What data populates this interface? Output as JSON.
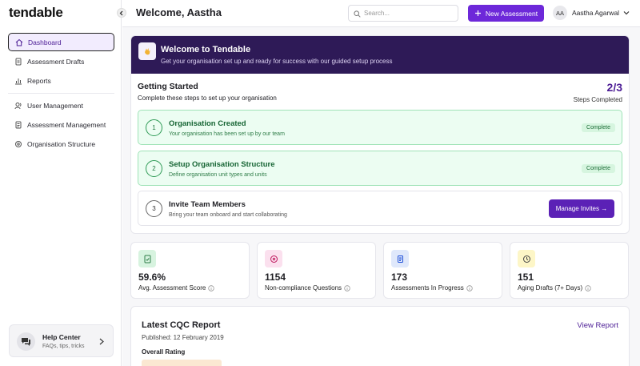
{
  "sidebar": {
    "logo": "tendable",
    "nav": [
      "Dashboard",
      "Assessment Drafts",
      "Reports",
      "User Management",
      "Assessment Management",
      "Organisation Structure"
    ],
    "help": {
      "title": "Help Center",
      "subtitle": "FAQs, tips, tricks"
    }
  },
  "header": {
    "title": "Welcome, Aastha",
    "search_placeholder": "Search...",
    "new_button": "New Assessment",
    "avatar": "AA",
    "user": "Aastha Agarwal"
  },
  "banner": {
    "title": "Welcome to Tendable",
    "subtitle": "Get your organisation set up and ready for success with our guided setup process"
  },
  "getting_started": {
    "title": "Getting Started",
    "subtitle": "Complete these steps to set up your organisation",
    "progress": "2/3",
    "progress_label": "Steps Completed",
    "steps": [
      {
        "number": "1",
        "title": "Organisation Created",
        "subtitle": "Your organisation has been set up by our team",
        "status": "Complete"
      },
      {
        "number": "2",
        "title": "Setup Organisation Structure",
        "subtitle": "Define organisation unit types and units",
        "status": "Complete"
      },
      {
        "number": "3",
        "title": "Invite Team Members",
        "subtitle": "Bring your team onboard and start collaborating",
        "action": "Manage Invites →"
      }
    ]
  },
  "stats": [
    {
      "value": "59.6%",
      "label": "Avg. Assessment Score"
    },
    {
      "value": "1154",
      "label": "Non-compliance Questions"
    },
    {
      "value": "173",
      "label": "Assessments In Progress"
    },
    {
      "value": "151",
      "label": "Aging Drafts (7+ Days)"
    }
  ],
  "report": {
    "title": "Latest CQC Report",
    "published": "Published: 12 February 2019",
    "link": "View Report",
    "rating_label": "Overall Rating"
  }
}
